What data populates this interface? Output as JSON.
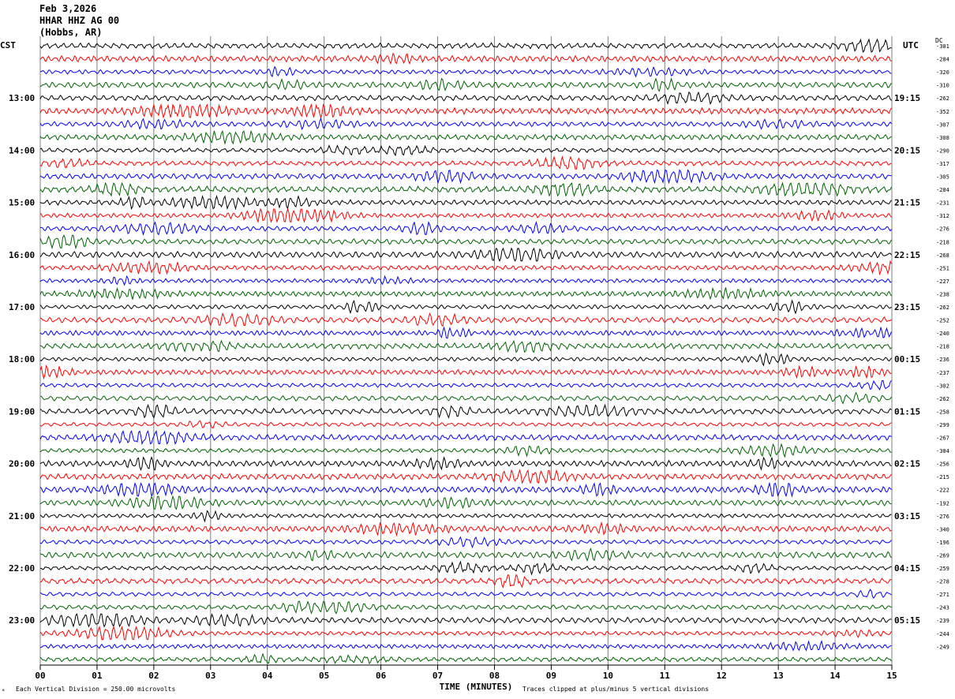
{
  "header": {
    "date": "Feb 3,2026",
    "station": "HHAR HHZ AG 00",
    "location": "(Hobbs, AR)"
  },
  "left_tz": "CST",
  "right_tz": "UTC",
  "dc_label": "DC",
  "footer": {
    "scale_note": "Each Vertical Division =  250.00 microvolts",
    "xlabel": "TIME (MINUTES)",
    "clip_note": "Traces clipped at plus/minus 5 vertical divisions"
  },
  "colors": {
    "cycle": [
      "#000000",
      "#ff0000",
      "#0000ff",
      "#006400"
    ],
    "grid": "#808080"
  },
  "chart_data": {
    "type": "line",
    "title": "HHAR HHZ AG 00",
    "xlabel": "TIME (MINUTES)",
    "ylabel": "",
    "xlim": [
      0,
      15
    ],
    "x_ticks": [
      "00",
      "01",
      "02",
      "03",
      "04",
      "05",
      "06",
      "07",
      "08",
      "09",
      "10",
      "11",
      "12",
      "13",
      "14",
      "15"
    ],
    "grid": "vertical lines at each minute",
    "row_count": 48,
    "row_minutes": 15,
    "left_hour_labels": [
      "13:00",
      "14:00",
      "15:00",
      "16:00",
      "17:00",
      "18:00",
      "19:00",
      "20:00",
      "21:00",
      "22:00",
      "23:00"
    ],
    "right_hour_labels": [
      "19:15",
      "20:15",
      "21:15",
      "22:15",
      "23:15",
      "00:15",
      "01:15",
      "02:15",
      "03:15",
      "04:15",
      "05:15"
    ],
    "dc_offsets": [
      "301",
      "284",
      "320",
      "310",
      "262",
      "352",
      "307",
      "308",
      "290",
      "317",
      "305",
      "284",
      "231",
      "312",
      "276",
      "218",
      "268",
      "251",
      "227",
      "238",
      "262",
      "252",
      "240",
      "218",
      "236",
      "237",
      "302",
      "262",
      "258",
      "299",
      "267",
      "304",
      "256",
      "215",
      "222",
      "192",
      "276",
      "340",
      "196",
      "269",
      "259",
      "278",
      "271",
      "243",
      "239",
      "244",
      "249"
    ],
    "scale_microvolts_per_division": 250.0
  }
}
